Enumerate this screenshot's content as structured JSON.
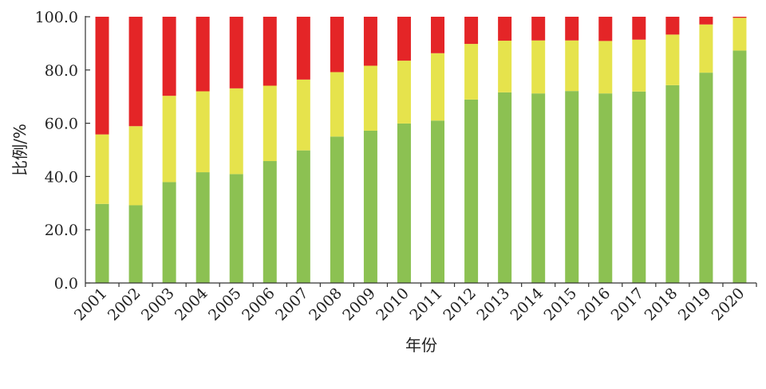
{
  "chart_data": {
    "type": "bar",
    "stacked": true,
    "categories": [
      "2001",
      "2002",
      "2003",
      "2004",
      "2005",
      "2006",
      "2007",
      "2008",
      "2009",
      "2010",
      "2011",
      "2012",
      "2013",
      "2014",
      "2015",
      "2016",
      "2017",
      "2018",
      "2019",
      "2020"
    ],
    "series": [
      {
        "color": "#8cc152",
        "values": [
          29.7,
          29.2,
          37.9,
          41.6,
          40.9,
          45.8,
          49.8,
          55.0,
          57.2,
          59.9,
          61.0,
          68.9,
          71.6,
          71.2,
          72.1,
          71.2,
          71.9,
          74.3,
          79.0,
          87.3
        ]
      },
      {
        "color": "#e6e34c",
        "values": [
          26.1,
          29.7,
          32.4,
          30.4,
          32.2,
          28.3,
          26.6,
          24.2,
          24.4,
          23.6,
          25.3,
          20.9,
          19.4,
          19.9,
          19.0,
          19.7,
          19.5,
          19.0,
          18.1,
          12.3
        ]
      },
      {
        "color": "#e42527",
        "values": [
          44.2,
          41.1,
          29.7,
          28.0,
          26.9,
          25.9,
          23.6,
          20.8,
          18.4,
          16.5,
          13.7,
          10.2,
          9.0,
          8.9,
          8.9,
          9.1,
          8.6,
          6.7,
          2.9,
          0.4
        ]
      }
    ],
    "xlabel": "年份",
    "ylabel": "比例/%",
    "ylim": [
      0,
      100
    ],
    "yticks": [
      "0.0",
      "20.0",
      "40.0",
      "60.0",
      "80.0",
      "100.0"
    ],
    "grid": false
  }
}
